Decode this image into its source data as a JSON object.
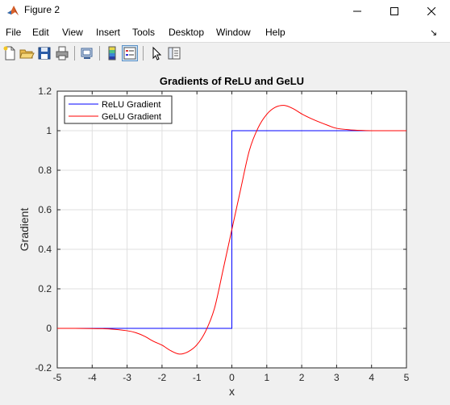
{
  "window": {
    "title": "Figure 2"
  },
  "menu": {
    "items": [
      "File",
      "Edit",
      "View",
      "Insert",
      "Tools",
      "Desktop",
      "Window",
      "Help"
    ],
    "overflow_glyph": "↘"
  },
  "toolbar": {
    "icons": [
      "new-figure-icon",
      "open-file-icon",
      "save-icon",
      "print-icon",
      "link-plot-icon",
      "colorbar-icon",
      "legend-icon",
      "pointer-icon",
      "property-editor-icon"
    ]
  },
  "chart_data": {
    "type": "line",
    "title": "Gradients of ReLU and GeLU",
    "xlabel": "x",
    "ylabel": "Gradient",
    "xlim": [
      -5,
      5
    ],
    "ylim": [
      -0.2,
      1.2
    ],
    "xticks": [
      "-5",
      "-4",
      "-3",
      "-2",
      "-1",
      "0",
      "1",
      "2",
      "3",
      "4",
      "5"
    ],
    "yticks": [
      "-0.2",
      "0",
      "0.2",
      "0.4",
      "0.6",
      "0.8",
      "1",
      "1.2"
    ],
    "grid": true,
    "legend_position": "top-left",
    "series": [
      {
        "name": "ReLU Gradient",
        "color": "#0000ff",
        "x": [
          -5,
          0,
          0,
          5
        ],
        "y": [
          0,
          0,
          1,
          1
        ]
      },
      {
        "name": "GeLU Gradient",
        "color": "#ff0000",
        "x": [
          -5,
          -4.5,
          -4,
          -3.5,
          -3,
          -2.75,
          -2.5,
          -2.25,
          -2,
          -1.75,
          -1.5,
          -1.25,
          -1,
          -0.75,
          -0.5,
          -0.25,
          0,
          0.25,
          0.5,
          0.75,
          1,
          1.25,
          1.5,
          1.75,
          2,
          2.25,
          2.5,
          2.75,
          3,
          3.5,
          4,
          4.5,
          5
        ],
        "y": [
          0,
          0,
          -0.001,
          -0.003,
          -0.012,
          -0.022,
          -0.04,
          -0.065,
          -0.085,
          -0.113,
          -0.13,
          -0.118,
          -0.083,
          -0.014,
          0.1,
          0.297,
          0.5,
          0.702,
          0.899,
          1.014,
          1.083,
          1.119,
          1.128,
          1.112,
          1.085,
          1.063,
          1.044,
          1.027,
          1.012,
          1.003,
          1.0,
          1.0,
          1.0
        ]
      }
    ]
  }
}
